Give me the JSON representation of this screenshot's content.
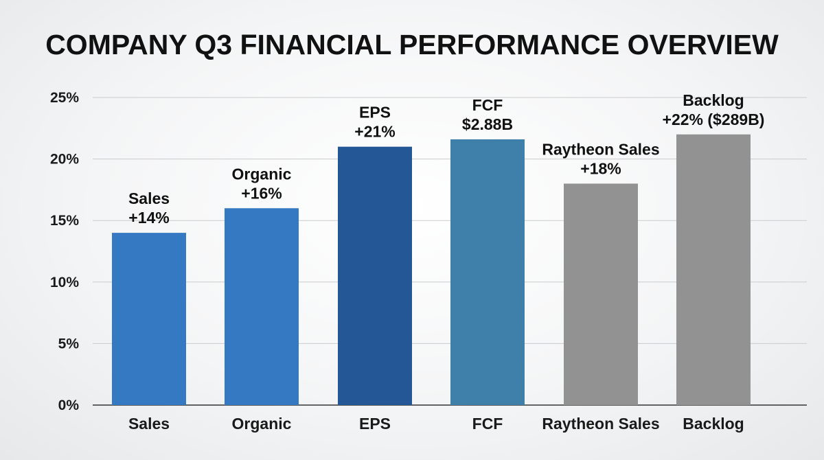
{
  "chart_data": {
    "type": "bar",
    "title": "COMPANY Q3 FINANCIAL PERFORMANCE OVERVIEW",
    "xlabel": "",
    "ylabel": "",
    "ylim": [
      0,
      25
    ],
    "yticks": [
      "0%",
      "5%",
      "10%",
      "15%",
      "20%",
      "25%"
    ],
    "grid": true,
    "categories": [
      "Sales",
      "Organic",
      "EPS",
      "FCF",
      "Raytheon Sales",
      "Backlog"
    ],
    "values": [
      14,
      16,
      21,
      21.6,
      18,
      22
    ],
    "bar_colors": [
      "#3479c2",
      "#3479c2",
      "#245796",
      "#3e80aa",
      "#929292",
      "#929292"
    ],
    "bar_labels": [
      [
        "Sales",
        "+14%"
      ],
      [
        "Organic",
        "+16%"
      ],
      [
        "EPS",
        "+21%"
      ],
      [
        "FCF",
        "$2.88B"
      ],
      [
        "Raytheon Sales",
        "+18%"
      ],
      [
        "Backlog",
        "+22% ($289B)"
      ]
    ]
  }
}
